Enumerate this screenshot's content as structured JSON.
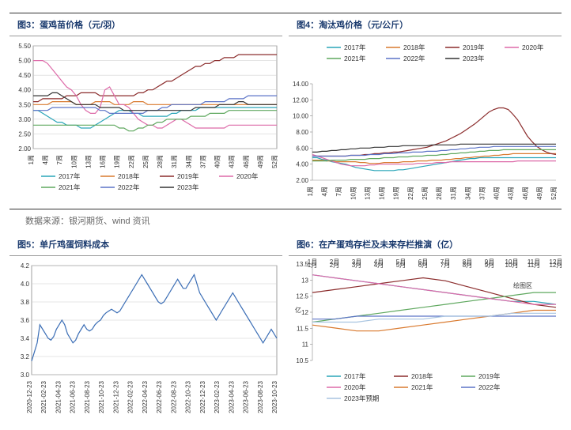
{
  "source_text": "数据来源：银河期货、wind 资讯",
  "series_names": [
    "2017年",
    "2018年",
    "2019年",
    "2020年",
    "2021年",
    "2022年",
    "2023年"
  ],
  "series_colors": [
    "#2aa5b8",
    "#d97a2f",
    "#8b2c2c",
    "#dd6aa8",
    "#5fa85f",
    "#5c74c7",
    "#333333"
  ],
  "x_labels_weeks": [
    "1周",
    "4周",
    "7周",
    "10周",
    "13周",
    "16周",
    "19周",
    "22周",
    "25周",
    "28周",
    "31周",
    "34周",
    "37周",
    "40周",
    "43周",
    "46周",
    "49周",
    "52周"
  ],
  "chart3": {
    "title": "图3：蛋鸡苗价格（元/羽）",
    "ylim": [
      2.0,
      5.5
    ],
    "ytick_step": 0.5,
    "grid_color": "#c9c9c9",
    "border_color": "#888",
    "legend_position": "bottom",
    "series_count": 7,
    "data": {
      "2017": [
        3.3,
        3.3,
        3.2,
        3.1,
        3.0,
        2.9,
        2.9,
        2.8,
        2.8,
        2.8,
        2.7,
        2.7,
        2.7,
        2.8,
        2.9,
        3.0,
        3.1,
        3.2,
        3.3,
        3.3,
        3.3,
        3.2,
        3.2,
        3.1,
        3.1,
        3.1,
        3.1,
        3.1,
        3.1,
        3.2,
        3.2,
        3.3,
        3.3,
        3.3,
        3.3,
        3.4,
        3.4,
        3.4,
        3.4,
        3.4,
        3.4,
        3.4,
        3.4,
        3.4,
        3.4,
        3.4,
        3.4,
        3.4,
        3.4,
        3.4,
        3.4,
        3.4
      ],
      "2018": [
        3.5,
        3.5,
        3.5,
        3.5,
        3.6,
        3.6,
        3.6,
        3.6,
        3.6,
        3.5,
        3.5,
        3.5,
        3.5,
        3.6,
        3.6,
        3.6,
        3.6,
        3.5,
        3.5,
        3.5,
        3.5,
        3.6,
        3.6,
        3.6,
        3.5,
        3.5,
        3.5,
        3.5,
        3.5,
        3.5,
        3.5,
        3.5,
        3.5,
        3.5,
        3.5,
        3.5,
        3.5,
        3.5,
        3.5,
        3.5,
        3.5,
        3.5,
        3.5,
        3.5,
        3.5,
        3.5,
        3.5,
        3.5,
        3.5,
        3.5,
        3.5,
        3.5
      ],
      "2019": [
        3.6,
        3.6,
        3.7,
        3.7,
        3.7,
        3.7,
        3.7,
        3.8,
        3.8,
        3.8,
        3.9,
        3.9,
        3.9,
        3.9,
        3.8,
        3.8,
        3.8,
        3.8,
        3.8,
        3.8,
        3.8,
        3.8,
        3.9,
        3.9,
        4.0,
        4.0,
        4.1,
        4.2,
        4.3,
        4.3,
        4.4,
        4.5,
        4.6,
        4.7,
        4.8,
        4.8,
        4.9,
        4.9,
        5.0,
        5.0,
        5.1,
        5.1,
        5.1,
        5.2,
        5.2,
        5.2,
        5.2,
        5.2,
        5.2,
        5.2,
        5.2,
        5.2
      ],
      "2020": [
        5.0,
        5.0,
        5.0,
        4.9,
        4.7,
        4.5,
        4.3,
        4.1,
        4.0,
        3.8,
        3.5,
        3.3,
        3.2,
        3.2,
        3.4,
        4.0,
        4.1,
        3.8,
        3.5,
        3.5,
        3.4,
        3.2,
        3.0,
        2.9,
        2.8,
        2.8,
        2.7,
        2.7,
        2.8,
        2.9,
        3.0,
        3.0,
        2.9,
        2.8,
        2.7,
        2.7,
        2.7,
        2.7,
        2.7,
        2.7,
        2.7,
        2.8,
        2.8,
        2.8,
        2.8,
        2.8,
        2.8,
        2.8,
        2.8,
        2.8,
        2.8,
        2.8
      ],
      "2021": [
        2.8,
        2.8,
        2.8,
        2.8,
        2.8,
        2.8,
        2.8,
        2.8,
        2.8,
        2.8,
        2.8,
        2.8,
        2.8,
        2.8,
        2.8,
        2.8,
        2.8,
        2.8,
        2.7,
        2.7,
        2.6,
        2.6,
        2.7,
        2.7,
        2.8,
        2.8,
        2.9,
        2.9,
        3.0,
        3.0,
        3.0,
        3.0,
        3.0,
        3.1,
        3.1,
        3.1,
        3.1,
        3.2,
        3.2,
        3.2,
        3.2,
        3.3,
        3.3,
        3.3,
        3.3,
        3.3,
        3.3,
        3.3,
        3.3,
        3.3,
        3.3,
        3.3
      ],
      "2022": [
        3.3,
        3.3,
        3.3,
        3.3,
        3.4,
        3.4,
        3.4,
        3.4,
        3.4,
        3.4,
        3.4,
        3.4,
        3.4,
        3.4,
        3.3,
        3.3,
        3.2,
        3.2,
        3.2,
        3.2,
        3.2,
        3.2,
        3.2,
        3.2,
        3.3,
        3.3,
        3.3,
        3.4,
        3.4,
        3.5,
        3.5,
        3.5,
        3.5,
        3.5,
        3.5,
        3.5,
        3.6,
        3.6,
        3.6,
        3.6,
        3.6,
        3.7,
        3.7,
        3.7,
        3.7,
        3.8,
        3.8,
        3.8,
        3.8,
        3.8,
        3.8,
        3.8
      ],
      "2023": [
        3.8,
        3.8,
        3.8,
        3.8,
        3.9,
        3.9,
        3.8,
        3.7,
        3.6,
        3.5,
        3.5,
        3.5,
        3.5,
        3.5,
        3.4,
        3.4,
        3.4,
        3.4,
        3.4,
        3.3,
        3.3,
        3.3,
        3.3,
        3.3,
        3.3,
        3.3,
        3.3,
        3.3,
        3.3,
        3.3,
        3.3,
        3.3,
        3.3,
        3.3,
        3.4,
        3.4,
        3.4,
        3.4,
        3.4,
        3.5,
        3.5,
        3.5,
        3.5,
        3.6,
        3.6,
        3.5,
        3.5,
        3.5,
        3.5,
        3.5,
        3.5,
        3.5
      ]
    }
  },
  "chart4": {
    "title": "图4：淘汰鸡价格（元/公斤）",
    "ylim": [
      2.0,
      14.0
    ],
    "ytick_step": 2.0,
    "grid_color": "#ffffff",
    "border_color": "#888",
    "legend_position": "top",
    "series_count": 7,
    "data": {
      "2017": [
        4.8,
        4.8,
        4.6,
        4.5,
        4.3,
        4.2,
        4.1,
        4.0,
        3.8,
        3.6,
        3.5,
        3.4,
        3.3,
        3.2,
        3.2,
        3.2,
        3.2,
        3.2,
        3.3,
        3.3,
        3.4,
        3.5,
        3.6,
        3.7,
        3.8,
        3.9,
        4.0,
        4.1,
        4.2,
        4.3,
        4.4,
        4.5,
        4.6,
        4.7,
        4.7,
        4.8,
        4.8,
        4.8,
        4.8,
        4.8,
        4.8,
        4.8,
        4.8,
        4.8,
        4.8,
        4.8,
        4.8,
        4.8,
        4.8,
        4.8,
        4.8,
        4.8
      ],
      "2018": [
        4.5,
        4.5,
        4.5,
        4.4,
        4.4,
        4.3,
        4.3,
        4.3,
        4.3,
        4.3,
        4.2,
        4.2,
        4.1,
        4.1,
        4.1,
        4.2,
        4.2,
        4.2,
        4.2,
        4.3,
        4.3,
        4.3,
        4.4,
        4.4,
        4.4,
        4.5,
        4.5,
        4.5,
        4.6,
        4.6,
        4.7,
        4.7,
        4.8,
        4.8,
        4.9,
        4.9,
        5.0,
        5.0,
        5.1,
        5.1,
        5.2,
        5.2,
        5.3,
        5.3,
        5.3,
        5.3,
        5.3,
        5.3,
        5.3,
        5.3,
        5.3,
        5.3
      ],
      "2019": [
        5.0,
        5.0,
        5.0,
        5.0,
        5.0,
        5.0,
        5.0,
        5.0,
        5.1,
        5.1,
        5.1,
        5.2,
        5.2,
        5.3,
        5.3,
        5.4,
        5.4,
        5.5,
        5.5,
        5.6,
        5.7,
        5.8,
        5.9,
        6.0,
        6.1,
        6.3,
        6.5,
        6.7,
        6.9,
        7.2,
        7.5,
        7.8,
        8.2,
        8.6,
        9.0,
        9.5,
        10.0,
        10.5,
        10.8,
        11.0,
        11.0,
        10.8,
        10.2,
        9.5,
        8.5,
        7.5,
        6.8,
        6.2,
        5.8,
        5.5,
        5.3,
        5.2
      ],
      "2020": [
        5.2,
        5.0,
        4.8,
        4.6,
        4.4,
        4.2,
        4.0,
        3.9,
        3.8,
        3.8,
        3.8,
        3.8,
        3.9,
        3.9,
        4.0,
        4.0,
        4.0,
        4.0,
        4.0,
        4.0,
        4.0,
        4.0,
        4.1,
        4.1,
        4.1,
        4.1,
        4.2,
        4.2,
        4.2,
        4.3,
        4.3,
        4.3,
        4.3,
        4.3,
        4.3,
        4.3,
        4.3,
        4.3,
        4.3,
        4.3,
        4.3,
        4.3,
        4.3,
        4.4,
        4.4,
        4.4,
        4.4,
        4.4,
        4.4,
        4.4,
        4.4,
        4.4
      ],
      "2021": [
        4.4,
        4.4,
        4.4,
        4.4,
        4.5,
        4.5,
        4.5,
        4.5,
        4.6,
        4.6,
        4.6,
        4.6,
        4.7,
        4.7,
        4.7,
        4.8,
        4.8,
        4.8,
        4.9,
        4.9,
        4.9,
        5.0,
        5.0,
        5.0,
        5.1,
        5.1,
        5.1,
        5.2,
        5.2,
        5.3,
        5.3,
        5.4,
        5.4,
        5.5,
        5.5,
        5.6,
        5.6,
        5.7,
        5.7,
        5.7,
        5.8,
        5.8,
        5.8,
        5.8,
        5.8,
        5.8,
        5.8,
        5.8,
        5.8,
        5.8,
        5.8,
        5.8
      ],
      "2022": [
        5.0,
        5.0,
        5.0,
        5.0,
        5.0,
        5.0,
        5.0,
        5.0,
        5.1,
        5.1,
        5.1,
        5.1,
        5.2,
        5.2,
        5.2,
        5.3,
        5.3,
        5.3,
        5.4,
        5.4,
        5.4,
        5.5,
        5.5,
        5.5,
        5.6,
        5.6,
        5.6,
        5.7,
        5.7,
        5.8,
        5.8,
        5.9,
        5.9,
        6.0,
        6.0,
        6.1,
        6.1,
        6.1,
        6.2,
        6.2,
        6.2,
        6.2,
        6.2,
        6.2,
        6.2,
        6.2,
        6.2,
        6.2,
        6.2,
        6.2,
        6.2,
        6.2
      ],
      "2023": [
        5.5,
        5.5,
        5.6,
        5.6,
        5.7,
        5.7,
        5.8,
        5.8,
        5.9,
        5.9,
        6.0,
        6.0,
        6.0,
        6.1,
        6.1,
        6.1,
        6.2,
        6.2,
        6.2,
        6.3,
        6.3,
        6.3,
        6.3,
        6.3,
        6.3,
        6.4,
        6.4,
        6.4,
        6.4,
        6.4,
        6.4,
        6.5,
        6.5,
        6.5,
        6.5,
        6.5,
        6.5,
        6.5,
        6.5,
        6.5,
        6.5,
        6.5,
        6.5,
        6.5,
        6.5,
        6.5,
        6.5,
        6.5,
        6.5,
        6.5,
        6.5,
        6.5
      ]
    }
  },
  "chart5": {
    "title": "图5：单斤鸡蛋饲料成本",
    "ylim": [
      3.0,
      4.2
    ],
    "ytick_step": 0.2,
    "grid_color": "#c9c9c9",
    "border_color": "#888",
    "line_color": "#3a6db5",
    "x_labels": [
      "2020-12-23",
      "2021-02-23",
      "2021-04-23",
      "2021-06-23",
      "2021-08-23",
      "2021-10-23",
      "2021-12-23",
      "2022-02-23",
      "2022-04-23",
      "2022-06-23",
      "2022-08-23",
      "2022-10-23",
      "2022-12-23",
      "2023-02-23",
      "2023-04-23",
      "2023-06-23",
      "2023-08-23",
      "2023-10-23"
    ],
    "data": [
      3.15,
      3.25,
      3.35,
      3.55,
      3.5,
      3.45,
      3.4,
      3.38,
      3.42,
      3.5,
      3.55,
      3.6,
      3.55,
      3.45,
      3.4,
      3.35,
      3.38,
      3.45,
      3.5,
      3.55,
      3.5,
      3.48,
      3.5,
      3.55,
      3.58,
      3.6,
      3.65,
      3.68,
      3.7,
      3.72,
      3.7,
      3.68,
      3.7,
      3.75,
      3.8,
      3.85,
      3.9,
      3.95,
      4.0,
      4.05,
      4.1,
      4.05,
      4.0,
      3.95,
      3.9,
      3.85,
      3.8,
      3.78,
      3.8,
      3.85,
      3.9,
      3.95,
      4.0,
      4.05,
      4.0,
      3.95,
      3.95,
      4.0,
      4.05,
      4.1,
      4.0,
      3.9,
      3.85,
      3.8,
      3.75,
      3.7,
      3.65,
      3.6,
      3.65,
      3.7,
      3.75,
      3.8,
      3.85,
      3.9,
      3.85,
      3.8,
      3.75,
      3.7,
      3.65,
      3.6,
      3.55,
      3.5,
      3.45,
      3.4,
      3.35,
      3.4,
      3.45,
      3.5,
      3.45,
      3.4
    ]
  },
  "chart6": {
    "title": "图6：在产蛋鸡存栏及未来存栏推演（亿）",
    "ylim": [
      10.5,
      13.5
    ],
    "ytick_step": 0.5,
    "grid_color": "#ffffff",
    "border_color": "#888",
    "x_labels": [
      "1月",
      "2月",
      "3月",
      "4月",
      "5月",
      "6月",
      "7月",
      "8月",
      "9月",
      "10月",
      "11月",
      "12月"
    ],
    "legend_names": [
      "2017年",
      "2018年",
      "2019年",
      "2020年",
      "2021年",
      "2022年",
      "2023年预期"
    ],
    "legend_colors": [
      "#2aa5b8",
      "#8b2c2c",
      "#5fa85f",
      "#dd6aa8",
      "#d97a2f",
      "#5c74c7",
      "#a8c4e0"
    ],
    "watermark": "绘图区",
    "data": {
      "2017": [
        13.4,
        13.3,
        13.2,
        13.1,
        13.0,
        12.9,
        12.8,
        12.7,
        12.6,
        12.5,
        12.5,
        12.4
      ],
      "2018": [
        12.8,
        12.9,
        13.0,
        13.1,
        13.2,
        13.3,
        13.2,
        13.0,
        12.8,
        12.6,
        12.4,
        12.3
      ],
      "2019": [
        11.8,
        11.9,
        12.0,
        12.1,
        12.2,
        12.3,
        12.4,
        12.5,
        12.6,
        12.7,
        12.8,
        12.8
      ],
      "2020": [
        13.4,
        13.3,
        13.2,
        13.1,
        13.0,
        12.9,
        12.8,
        12.7,
        12.6,
        12.5,
        12.4,
        12.4
      ],
      "2021": [
        11.7,
        11.6,
        11.5,
        11.5,
        11.6,
        11.7,
        11.8,
        11.9,
        12.0,
        12.1,
        12.2,
        12.2
      ],
      "2022": [
        11.9,
        11.9,
        12.0,
        12.0,
        12.0,
        12.0,
        12.0,
        12.0,
        12.0,
        12.0,
        12.0,
        12.0
      ],
      "2023f": [
        11.8,
        11.8,
        11.8,
        11.9,
        11.9,
        11.9,
        12.0,
        12.0,
        12.0,
        12.1,
        12.1,
        12.1
      ]
    }
  }
}
